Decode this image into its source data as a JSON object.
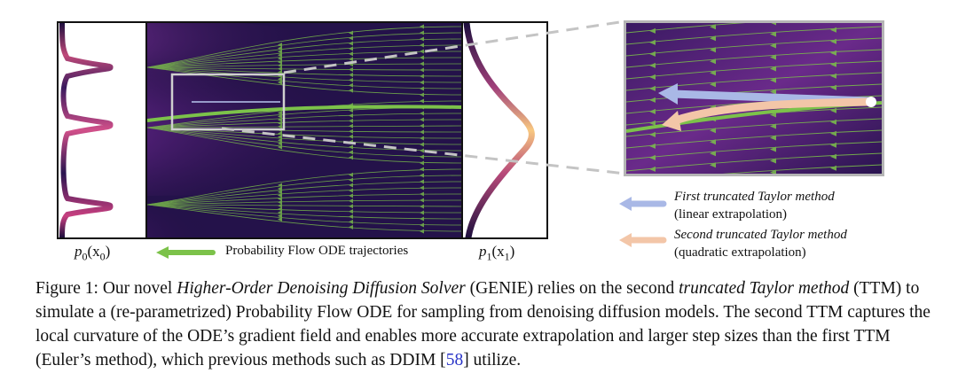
{
  "figure": {
    "left_label_base": "p",
    "left_label_sub": "0",
    "left_label_arg": "(x",
    "left_label_argsub": "0",
    "left_label_close": ")",
    "right_label_base": "p",
    "right_label_sub": "1",
    "right_label_arg": "(x",
    "right_label_argsub": "1",
    "right_label_close": ")",
    "trajectory_legend": "Probability Flow ODE trajectories",
    "legend_first_title": "First truncated Taylor method",
    "legend_first_sub": "(linear extrapolation)",
    "legend_second_title": "Second truncated Taylor method",
    "legend_second_sub": "(quadratic extrapolation)",
    "colors": {
      "green": "#7cc24a",
      "first_arrow": "#a9b8e6",
      "second_arrow": "#f3c6a8",
      "field_dark": "#1e0f3e",
      "field_mid": "#6a2a8a",
      "field_hot": "#f6a86b"
    }
  },
  "caption": {
    "p1": "Figure 1: Our novel ",
    "p2": "Higher-Order Denoising Diffusion Solver",
    "p3": " (GENIE) relies on the second ",
    "p4": "truncated Taylor method",
    "p5": " (TTM) to simulate a (re-parametrized) Probability Flow ODE for sampling from denoising diffusion models. The second TTM captures the local curvature of the ODE’s gradient field and enables more accurate extrapolation and larger step sizes than the first TTM (Euler’s method), which previous methods such as DDIM [",
    "cite": "58",
    "p6": "] utilize."
  }
}
